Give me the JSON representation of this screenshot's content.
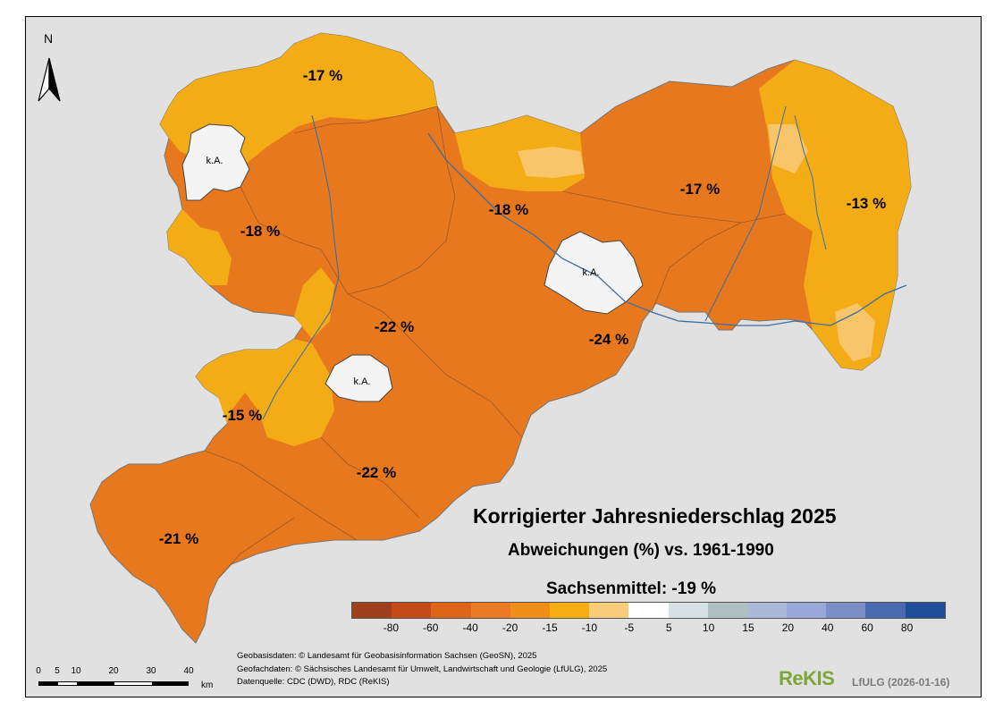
{
  "title": "Korrigierter Jahresniederschlag 2025",
  "subtitle": "Abweichungen (%) vs. 1961-1990",
  "mean_label": "Sachsenmittel: -19 %",
  "north_label": "N",
  "no_data_label": "k.A.",
  "regions": [
    {
      "id": "leipzig-north",
      "label": "-17 %"
    },
    {
      "id": "leipzig-west",
      "label": "-18 %"
    },
    {
      "id": "meissen",
      "label": "-18 %"
    },
    {
      "id": "bautzen",
      "label": "-17 %"
    },
    {
      "id": "goerlitz",
      "label": "-13 %"
    },
    {
      "id": "mittelsachsen",
      "label": "-22 %"
    },
    {
      "id": "saechsische-schweiz",
      "label": "-24 %"
    },
    {
      "id": "zwickau",
      "label": "-15 %"
    },
    {
      "id": "erzgebirge",
      "label": "-22 %"
    },
    {
      "id": "vogtland",
      "label": "-21 %"
    }
  ],
  "legend": {
    "colors": [
      "#a0401a",
      "#c44a1a",
      "#e0631a",
      "#ea7a24",
      "#f08e1a",
      "#f5ad12",
      "#f9cc7a",
      "#ffffff",
      "#d7e2e4",
      "#b0c0c0",
      "#adb9d9",
      "#98a9d9",
      "#7a8ec8",
      "#4a6ab0",
      "#1f4f99"
    ],
    "ticks": [
      "-80",
      "-60",
      "-40",
      "-20",
      "-15",
      "-10",
      "-5",
      "5",
      "10",
      "15",
      "20",
      "40",
      "60",
      "80"
    ]
  },
  "credits": [
    "Geobasisdaten: © Landesamt für Geobasisinformation Sachsen (GeoSN), 2025",
    "Geofachdaten: © Sächsisches Landesamt für Umwelt, Landwirtschaft und Geologie (LfULG), 2025",
    "Datenquelle: CDC (DWD), RDC (ReKIS)"
  ],
  "scalebar": {
    "ticks": [
      "0",
      "5",
      "10",
      "20",
      "30",
      "40"
    ],
    "unit": "km"
  },
  "logo": {
    "rekis": "ReKIS",
    "agency": "LfULG (2026-01-16)"
  }
}
